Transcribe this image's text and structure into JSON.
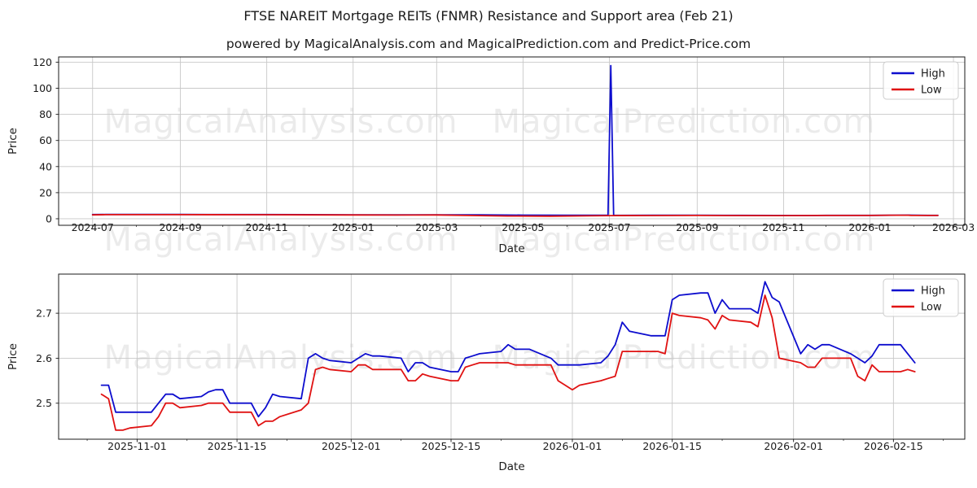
{
  "title": "FTSE NAREIT Mortgage REITs (FNMR) Resistance and Support area (Feb 21)",
  "subtitle": "powered by MagicalAnalysis.com and MagicalPrediction.com and Predict-Price.com",
  "watermarks": [
    "MagicalAnalysis.com",
    "MagicalPrediction.com"
  ],
  "colors": {
    "high": "#0d0dce",
    "low": "#e01212",
    "grid": "#c8c8c8",
    "spine": "#1a1a1a",
    "legend_border": "#cccccc"
  },
  "legend": {
    "items": [
      {
        "label": "High"
      },
      {
        "label": "Low"
      }
    ]
  },
  "chart_data": [
    {
      "type": "line",
      "title": "FTSE NAREIT Mortgage REITs (FNMR) Resistance and Support area (Feb 21)",
      "xlabel": "Date",
      "ylabel": "Price",
      "grid": true,
      "legend_position": "upper right",
      "xlim": [
        "2024-06-07",
        "2026-03-09"
      ],
      "ylim": [
        -5,
        124
      ],
      "xticks": [
        "2024-07",
        "2024-09",
        "2024-11",
        "2025-01",
        "2025-03",
        "2025-05",
        "2025-07",
        "2025-09",
        "2025-11",
        "2026-01",
        "2026-03"
      ],
      "minor_xticks": [
        "2024-08",
        "2024-10",
        "2024-12",
        "2025-02",
        "2025-04",
        "2025-06",
        "2025-08",
        "2025-10",
        "2025-12",
        "2026-02"
      ],
      "yticks": [
        0,
        20,
        40,
        60,
        80,
        100,
        120
      ],
      "series": [
        {
          "name": "High",
          "color": "#0d0dce",
          "points": [
            [
              "2024-07-01",
              3.2
            ],
            [
              "2024-07-10",
              3.3
            ],
            [
              "2024-09-01",
              3.3
            ],
            [
              "2024-11-01",
              3.25
            ],
            [
              "2024-12-01",
              3.15
            ],
            [
              "2025-01-01",
              3.05
            ],
            [
              "2025-02-01",
              3.0
            ],
            [
              "2025-03-01",
              3.05
            ],
            [
              "2025-04-01",
              2.95
            ],
            [
              "2025-05-01",
              2.8
            ],
            [
              "2025-06-01",
              2.7
            ],
            [
              "2025-06-30",
              2.65
            ],
            [
              "2025-07-02",
              117.4
            ],
            [
              "2025-07-04",
              2.6
            ],
            [
              "2025-08-01",
              2.65
            ],
            [
              "2025-09-01",
              2.7
            ],
            [
              "2025-10-01",
              2.6
            ],
            [
              "2025-10-27",
              2.54
            ],
            [
              "2025-11-18",
              2.47
            ],
            [
              "2025-12-01",
              2.59
            ],
            [
              "2025-12-23",
              2.63
            ],
            [
              "2026-01-02",
              2.585
            ],
            [
              "2026-01-20",
              2.745
            ],
            [
              "2026-01-28",
              2.77
            ],
            [
              "2026-02-11",
              2.59
            ],
            [
              "2026-02-16",
              2.63
            ],
            [
              "2026-02-18",
              2.59
            ]
          ]
        },
        {
          "name": "Low",
          "color": "#e01212",
          "points": [
            [
              "2024-07-01",
              3.0
            ],
            [
              "2024-07-10",
              3.15
            ],
            [
              "2024-09-01",
              3.15
            ],
            [
              "2024-11-01",
              3.1
            ],
            [
              "2024-12-01",
              3.0
            ],
            [
              "2025-01-01",
              2.9
            ],
            [
              "2025-02-01",
              2.85
            ],
            [
              "2025-03-01",
              2.9
            ],
            [
              "2025-04-01",
              2.4
            ],
            [
              "2025-04-20",
              2.1
            ],
            [
              "2025-05-20",
              2.0
            ],
            [
              "2025-06-15",
              2.2
            ],
            [
              "2025-07-02",
              2.4
            ],
            [
              "2025-08-01",
              2.5
            ],
            [
              "2025-09-01",
              2.55
            ],
            [
              "2025-10-01",
              2.5
            ],
            [
              "2025-10-29",
              2.44
            ],
            [
              "2025-11-18",
              2.45
            ],
            [
              "2025-12-01",
              2.57
            ],
            [
              "2026-01-01",
              2.53
            ],
            [
              "2026-01-15",
              2.7
            ],
            [
              "2026-01-28",
              2.74
            ],
            [
              "2026-01-30",
              2.6
            ],
            [
              "2026-02-11",
              2.55
            ],
            [
              "2026-02-18",
              2.57
            ]
          ]
        }
      ]
    },
    {
      "type": "line",
      "xlabel": "Date",
      "ylabel": "Price",
      "grid": true,
      "legend_position": "upper right",
      "xlim": [
        "2025-10-21",
        "2026-02-25"
      ],
      "ylim": [
        2.42,
        2.787
      ],
      "xticks": [
        "2025-11-01",
        "2025-11-15",
        "2025-12-01",
        "2025-12-15",
        "2026-01-01",
        "2026-01-15",
        "2026-02-01",
        "2026-02-15"
      ],
      "minor_xticks": [
        "2025-10-25",
        "2025-11-08",
        "2025-11-22",
        "2025-12-08",
        "2025-12-22",
        "2026-01-08",
        "2026-01-22",
        "2026-02-08",
        "2026-02-22"
      ],
      "yticks": [
        2.5,
        2.6,
        2.7
      ],
      "row_columns": [
        "date",
        "high",
        "low"
      ],
      "row_series": [
        {
          "name": "High",
          "color": "#0d0dce",
          "column": 1
        },
        {
          "name": "Low",
          "color": "#e01212",
          "column": 2
        }
      ],
      "rows": [
        [
          "2025-10-27",
          2.54,
          2.52
        ],
        [
          "2025-10-28",
          2.54,
          2.51
        ],
        [
          "2025-10-29",
          2.48,
          2.44
        ],
        [
          "2025-10-30",
          2.48,
          2.44
        ],
        [
          "2025-10-31",
          2.48,
          2.445
        ],
        [
          "2025-11-03",
          2.48,
          2.45
        ],
        [
          "2025-11-04",
          2.5,
          2.47
        ],
        [
          "2025-11-05",
          2.52,
          2.5
        ],
        [
          "2025-11-06",
          2.52,
          2.5
        ],
        [
          "2025-11-07",
          2.51,
          2.49
        ],
        [
          "2025-11-10",
          2.515,
          2.495
        ],
        [
          "2025-11-11",
          2.525,
          2.5
        ],
        [
          "2025-11-12",
          2.53,
          2.5
        ],
        [
          "2025-11-13",
          2.53,
          2.5
        ],
        [
          "2025-11-14",
          2.5,
          2.48
        ],
        [
          "2025-11-17",
          2.5,
          2.48
        ],
        [
          "2025-11-18",
          2.47,
          2.45
        ],
        [
          "2025-11-19",
          2.49,
          2.46
        ],
        [
          "2025-11-20",
          2.52,
          2.46
        ],
        [
          "2025-11-21",
          2.515,
          2.47
        ],
        [
          "2025-11-24",
          2.51,
          2.485
        ],
        [
          "2025-11-25",
          2.6,
          2.5
        ],
        [
          "2025-11-26",
          2.61,
          2.575
        ],
        [
          "2025-11-27",
          2.6,
          2.58
        ],
        [
          "2025-11-28",
          2.595,
          2.575
        ],
        [
          "2025-12-01",
          2.59,
          2.57
        ],
        [
          "2025-12-02",
          2.6,
          2.585
        ],
        [
          "2025-12-03",
          2.61,
          2.585
        ],
        [
          "2025-12-04",
          2.605,
          2.575
        ],
        [
          "2025-12-05",
          2.605,
          2.575
        ],
        [
          "2025-12-08",
          2.6,
          2.575
        ],
        [
          "2025-12-09",
          2.57,
          2.55
        ],
        [
          "2025-12-10",
          2.59,
          2.55
        ],
        [
          "2025-12-11",
          2.59,
          2.565
        ],
        [
          "2025-12-12",
          2.58,
          2.56
        ],
        [
          "2025-12-15",
          2.57,
          2.55
        ],
        [
          "2025-12-16",
          2.57,
          2.55
        ],
        [
          "2025-12-17",
          2.6,
          2.58
        ],
        [
          "2025-12-18",
          2.605,
          2.585
        ],
        [
          "2025-12-19",
          2.61,
          2.59
        ],
        [
          "2025-12-22",
          2.615,
          2.59
        ],
        [
          "2025-12-23",
          2.63,
          2.59
        ],
        [
          "2025-12-24",
          2.62,
          2.585
        ],
        [
          "2025-12-26",
          2.62,
          2.585
        ],
        [
          "2025-12-29",
          2.6,
          2.585
        ],
        [
          "2025-12-30",
          2.585,
          2.55
        ],
        [
          "2025-12-31",
          2.585,
          2.54
        ],
        [
          "2026-01-01",
          2.585,
          2.53
        ],
        [
          "2026-01-02",
          2.585,
          2.54
        ],
        [
          "2026-01-05",
          2.59,
          2.55
        ],
        [
          "2026-01-06",
          2.605,
          2.555
        ],
        [
          "2026-01-07",
          2.63,
          2.56
        ],
        [
          "2026-01-08",
          2.68,
          2.615
        ],
        [
          "2026-01-09",
          2.66,
          2.615
        ],
        [
          "2026-01-12",
          2.65,
          2.615
        ],
        [
          "2026-01-13",
          2.65,
          2.615
        ],
        [
          "2026-01-14",
          2.65,
          2.61
        ],
        [
          "2026-01-15",
          2.73,
          2.7
        ],
        [
          "2026-01-16",
          2.74,
          2.695
        ],
        [
          "2026-01-19",
          2.745,
          2.69
        ],
        [
          "2026-01-20",
          2.745,
          2.685
        ],
        [
          "2026-01-21",
          2.7,
          2.665
        ],
        [
          "2026-01-22",
          2.73,
          2.695
        ],
        [
          "2026-01-23",
          2.71,
          2.685
        ],
        [
          "2026-01-26",
          2.71,
          2.68
        ],
        [
          "2026-01-27",
          2.7,
          2.67
        ],
        [
          "2026-01-28",
          2.77,
          2.74
        ],
        [
          "2026-01-29",
          2.735,
          2.69
        ],
        [
          "2026-01-30",
          2.725,
          2.6
        ],
        [
          "2026-02-02",
          2.61,
          2.59
        ],
        [
          "2026-02-03",
          2.63,
          2.58
        ],
        [
          "2026-02-04",
          2.62,
          2.58
        ],
        [
          "2026-02-05",
          2.63,
          2.6
        ],
        [
          "2026-02-06",
          2.63,
          2.6
        ],
        [
          "2026-02-09",
          2.61,
          2.6
        ],
        [
          "2026-02-10",
          2.6,
          2.56
        ],
        [
          "2026-02-11",
          2.59,
          2.55
        ],
        [
          "2026-02-12",
          2.605,
          2.585
        ],
        [
          "2026-02-13",
          2.63,
          2.57
        ],
        [
          "2026-02-16",
          2.63,
          2.57
        ],
        [
          "2026-02-17",
          2.61,
          2.575
        ],
        [
          "2026-02-18",
          2.59,
          2.57
        ]
      ]
    }
  ]
}
